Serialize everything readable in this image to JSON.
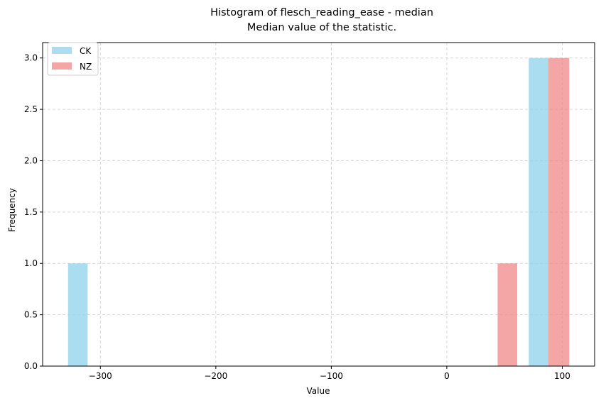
{
  "chart_data": {
    "type": "bar",
    "title": "Histogram of flesch_reading_ease - median",
    "subtitle": "Median value of the statistic.",
    "xlabel": "Value",
    "ylabel": "Frequency",
    "xlim": [
      -350,
      128
    ],
    "ylim": [
      0,
      3.15
    ],
    "x_ticks": [
      -300,
      -200,
      -100,
      0,
      100
    ],
    "x_tick_labels": [
      "−300",
      "−200",
      "−100",
      "0",
      "100"
    ],
    "y_ticks": [
      0,
      0.5,
      1.0,
      1.5,
      2.0,
      2.5,
      3.0
    ],
    "y_tick_labels": [
      "0.0",
      "0.5",
      "1.0",
      "1.5",
      "2.0",
      "2.5",
      "3.0"
    ],
    "grid": true,
    "legend_position": "top-left",
    "series": [
      {
        "name": "CK",
        "color": "#87ceeb",
        "bars": [
          {
            "x_start": -328,
            "x_end": -311,
            "count": 1
          },
          {
            "x_start": 71,
            "x_end": 88,
            "count": 3
          }
        ]
      },
      {
        "name": "NZ",
        "color": "#f08080",
        "bars": [
          {
            "x_start": 44,
            "x_end": 61,
            "count": 1
          },
          {
            "x_start": 88,
            "x_end": 106,
            "count": 3
          }
        ]
      }
    ]
  }
}
